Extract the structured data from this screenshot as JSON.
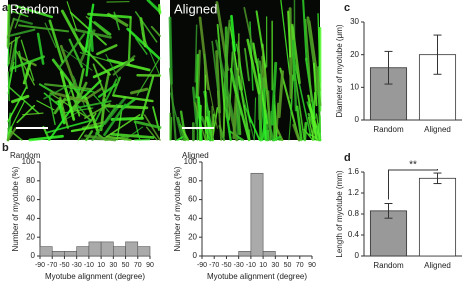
{
  "images": {
    "label": "a",
    "items": [
      "Random",
      "Aligned"
    ]
  },
  "chart_data": [
    {
      "type": "histogram",
      "label": "b",
      "title": "Random",
      "bins": [
        -90,
        -70,
        -50,
        -30,
        -10,
        10,
        30,
        50,
        70,
        90
      ],
      "values": [
        10,
        5,
        5,
        10,
        15,
        15,
        10,
        15,
        10
      ],
      "color": "#aaaaaa",
      "xlim": [
        -90,
        90
      ],
      "ylim": [
        0,
        100
      ],
      "yticks": [
        0,
        20,
        40,
        60,
        80,
        100
      ],
      "xlabel": "Myotube alignment (degree)",
      "ylabel": "Number of myotube (%)"
    },
    {
      "type": "histogram",
      "title": "Aligned",
      "bins": [
        -90,
        -70,
        -50,
        -30,
        -10,
        10,
        30,
        50,
        70,
        90
      ],
      "values": [
        0,
        0,
        0,
        5,
        88,
        5,
        0,
        0,
        0
      ],
      "color": "#aaaaaa",
      "xlim": [
        -90,
        90
      ],
      "ylim": [
        0,
        100
      ],
      "yticks": [
        0,
        20,
        40,
        60,
        80,
        100
      ],
      "xlabel": "Myotube alignment (degree)",
      "ylabel": "Number of myotube (%)"
    },
    {
      "type": "bar",
      "label": "c",
      "categories": [
        "Random",
        "Aligned"
      ],
      "values": [
        16,
        20
      ],
      "errors": [
        5,
        6
      ],
      "colors": [
        "#999999",
        "#ffffff"
      ],
      "ylim": [
        0,
        30
      ],
      "yticks": [
        0,
        10,
        20,
        30
      ],
      "ylabel": "Diameter of myotube (μm)"
    },
    {
      "type": "bar",
      "label": "d",
      "categories": [
        "Random",
        "Aligned"
      ],
      "values": [
        0.86,
        1.48
      ],
      "errors": [
        0.14,
        0.1
      ],
      "colors": [
        "#999999",
        "#ffffff"
      ],
      "ylim": [
        0,
        1.6
      ],
      "yticks": [
        0,
        0.4,
        0.8,
        1.2,
        1.6
      ],
      "ylabel": "Length of myotube (mm)",
      "annotation": "**"
    }
  ]
}
